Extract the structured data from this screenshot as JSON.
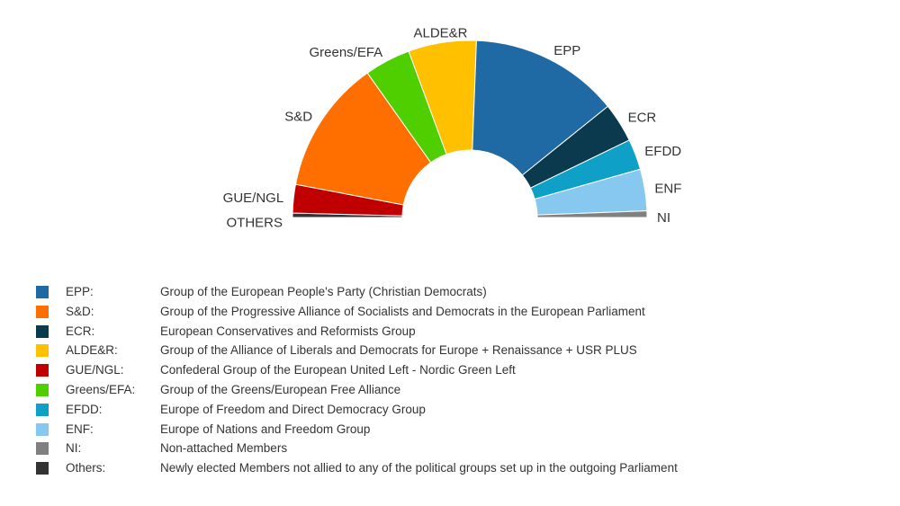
{
  "chart_data": {
    "type": "pie",
    "subtype": "parliament-semicircle",
    "title": "",
    "segments": [
      {
        "label": "OTHERS",
        "value": 1,
        "color": "#333333"
      },
      {
        "label": "GUE/NGL",
        "value": 6.5,
        "color": "#c00000"
      },
      {
        "label": "S&D",
        "value": 30.5,
        "color": "#ff6f00"
      },
      {
        "label": "Greens/EFA",
        "value": 10.5,
        "color": "#4fcf00"
      },
      {
        "label": "ALDE&R",
        "value": 15.5,
        "color": "#ffc000"
      },
      {
        "label": "EPP",
        "value": 34,
        "color": "#1f6aa5"
      },
      {
        "label": "ECR",
        "value": 9,
        "color": "#0b3a4f"
      },
      {
        "label": "EFDD",
        "value": 7,
        "color": "#0fa0c8"
      },
      {
        "label": "ENF",
        "value": 9.5,
        "color": "#86c8ef"
      },
      {
        "label": "NI",
        "value": 1.5,
        "color": "#808080"
      }
    ]
  },
  "legend": [
    {
      "abbr": "EPP:",
      "name": "Group of the European People's Party (Christian Democrats)",
      "color": "#1f6aa5"
    },
    {
      "abbr": "S&D:",
      "name": "Group of the Progressive Alliance of Socialists and Democrats in the European Parliament",
      "color": "#ff6f00"
    },
    {
      "abbr": "ECR:",
      "name": "European Conservatives and Reformists Group",
      "color": "#0b3a4f"
    },
    {
      "abbr": "ALDE&R:",
      "name": "Group of the Alliance of Liberals and Democrats for Europe + Renaissance + USR PLUS",
      "color": "#ffc000"
    },
    {
      "abbr": "GUE/NGL:",
      "name": "Confederal Group of the European United Left - Nordic Green Left",
      "color": "#c00000"
    },
    {
      "abbr": "Greens/EFA:",
      "name": "Group of the Greens/European Free Alliance",
      "color": "#4fcf00"
    },
    {
      "abbr": "EFDD:",
      "name": "Europe of Freedom and Direct Democracy Group",
      "color": "#0fa0c8"
    },
    {
      "abbr": "ENF:",
      "name": "Europe of Nations and Freedom Group",
      "color": "#86c8ef"
    },
    {
      "abbr": "NI:",
      "name": "Non-attached Members",
      "color": "#808080"
    },
    {
      "abbr": "Others:",
      "name": "Newly elected Members not allied to any of the political groups set up in the outgoing Parliament",
      "color": "#333333"
    }
  ]
}
